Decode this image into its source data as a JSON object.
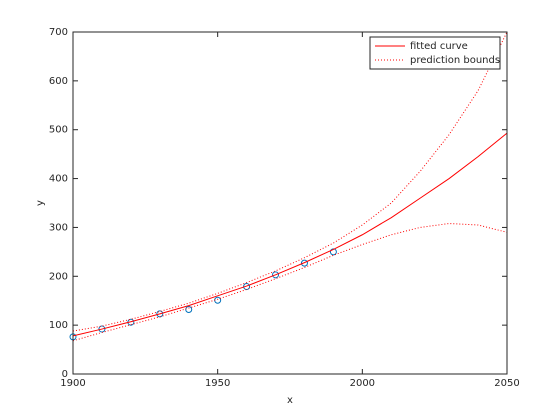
{
  "chart_data": {
    "type": "line",
    "x_label": "x",
    "y_label": "y",
    "xlim": [
      1900,
      2050
    ],
    "ylim": [
      0,
      700
    ],
    "xticks": [
      1900,
      1950,
      2000,
      2050
    ],
    "yticks": [
      0,
      100,
      200,
      300,
      400,
      500,
      600,
      700
    ],
    "legend": "top-right",
    "series": [
      {
        "marker": "o",
        "color": "#0072bd",
        "x": [
          1900,
          1910,
          1920,
          1930,
          1940,
          1950,
          1960,
          1970,
          1980,
          1990
        ],
        "values": [
          76,
          92,
          106,
          123,
          132,
          151,
          179,
          203,
          227,
          250
        ]
      },
      {
        "name": "fitted curve",
        "color": "#ff0000",
        "style": "solid",
        "x": [
          1900,
          1910,
          1920,
          1930,
          1940,
          1950,
          1960,
          1970,
          1980,
          1990,
          2000,
          2010,
          2020,
          2030,
          2040,
          2050
        ],
        "values": [
          78,
          92,
          107,
          123,
          140,
          160,
          180,
          203,
          228,
          255,
          285,
          320,
          360,
          400,
          445,
          493
        ]
      },
      {
        "name": "prediction bounds",
        "color": "#ff0000",
        "style": "dotted",
        "x": [
          1900,
          1910,
          1920,
          1930,
          1940,
          1950,
          1960,
          1970,
          1980,
          1990,
          2000,
          2010,
          2020,
          2030,
          2040,
          2050
        ],
        "values": [
          88,
          98,
          112,
          128,
          145,
          165,
          187,
          211,
          238,
          268,
          305,
          350,
          415,
          490,
          580,
          700
        ],
        "lower": [
          68,
          85,
          101,
          117,
          135,
          153,
          173,
          195,
          218,
          243,
          265,
          285,
          300,
          308,
          305,
          290
        ]
      }
    ]
  }
}
